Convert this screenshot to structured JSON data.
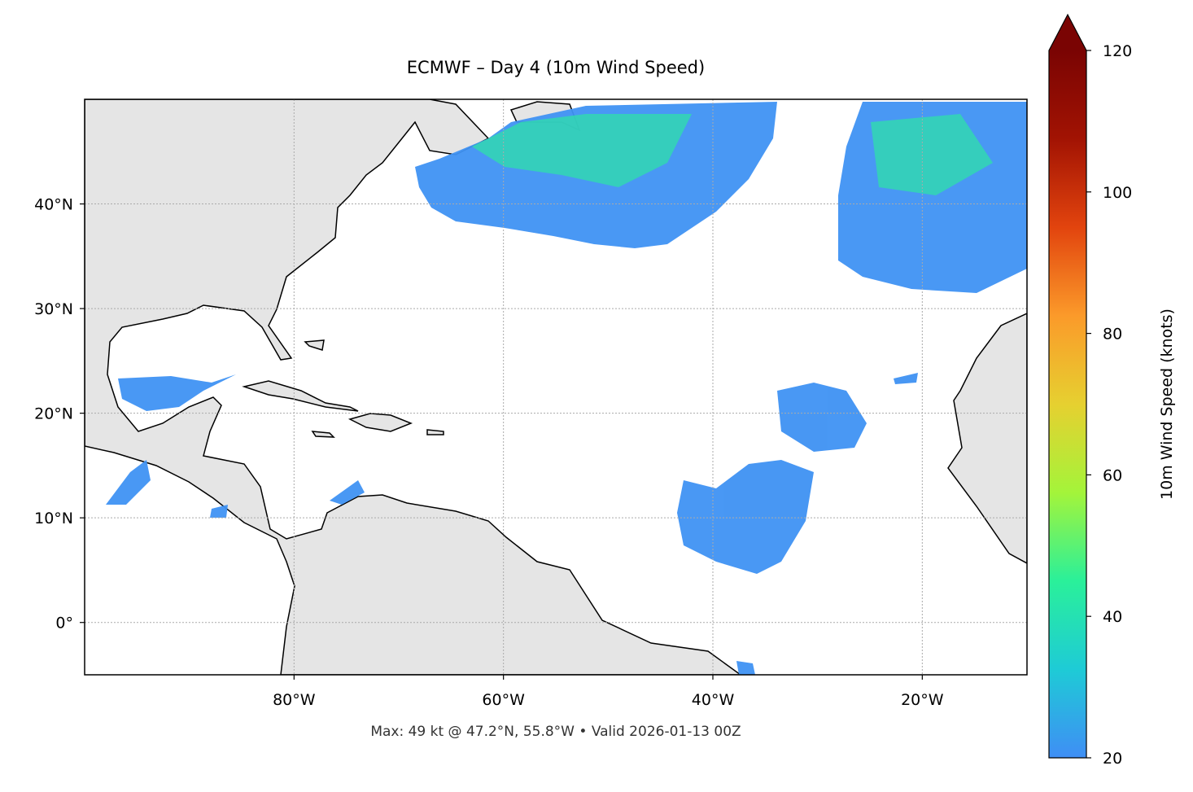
{
  "map": {
    "title": "ECMWF – Day 4 (10m Wind Speed)",
    "footer": "Max: 49 kt @ 47.2°N, 55.8°W • Valid 2026-01-13 00Z",
    "xlim": [
      -100,
      -10
    ],
    "ylim": [
      -5,
      50
    ],
    "xticks": [
      {
        "value": -80,
        "label": "80°W"
      },
      {
        "value": -60,
        "label": "60°W"
      },
      {
        "value": -40,
        "label": "40°W"
      },
      {
        "value": -20,
        "label": "20°W"
      }
    ],
    "yticks": [
      {
        "value": 0,
        "label": "0°"
      },
      {
        "value": 10,
        "label": "10°N"
      },
      {
        "value": 20,
        "label": "20°N"
      },
      {
        "value": 30,
        "label": "30°N"
      },
      {
        "value": 40,
        "label": "40°N"
      }
    ],
    "grid": true,
    "colorbar": {
      "label": "10m Wind Speed (knots)",
      "lim": [
        20,
        120
      ],
      "ticks": [
        20,
        40,
        60,
        80,
        100,
        120
      ],
      "colors": [
        "#3f8ef5",
        "#1ecbd6",
        "#2af09a",
        "#a4f43a",
        "#e6d030",
        "#fb9a2a",
        "#e2440e",
        "#a21303",
        "#7a0403"
      ]
    }
  }
}
